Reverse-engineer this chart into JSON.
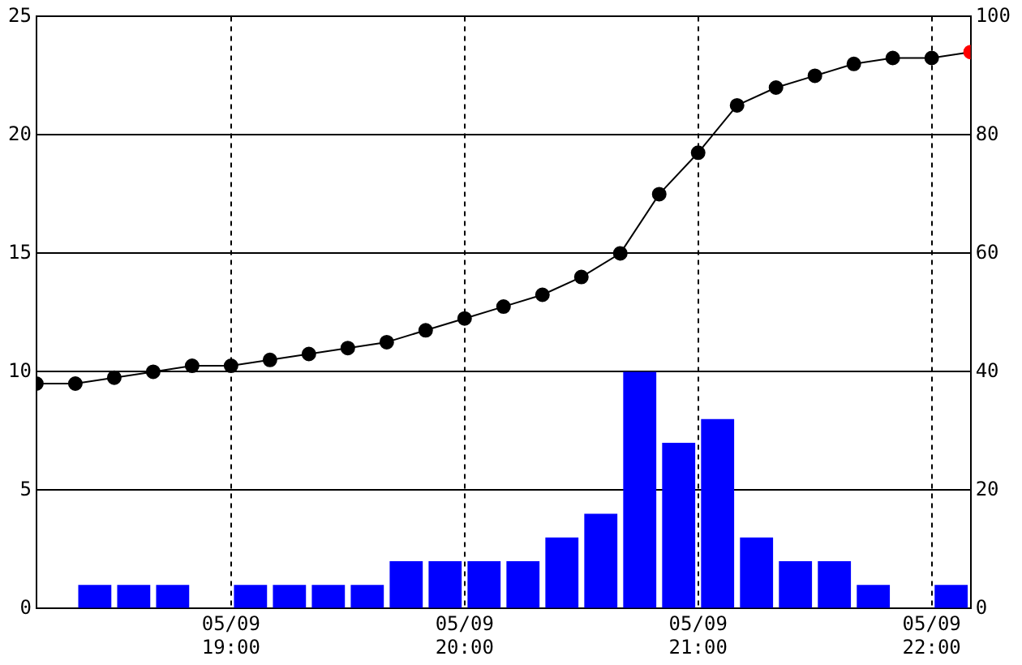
{
  "chart_data": {
    "type": "bar",
    "xlim": [
      "--05-09T18:10",
      "--05-09T22:10"
    ],
    "xticks": [
      {
        "value": "--05-09T19:00",
        "label": "05/09\n19:00"
      },
      {
        "value": "--05-09T20:00",
        "label": "05/09\n20:00"
      },
      {
        "value": "--05-09T21:00",
        "label": "05/09\n21:00"
      },
      {
        "value": "--05-09T22:00",
        "label": "05/09\n22:00"
      }
    ],
    "ylim": [
      0,
      25
    ],
    "yticks": [
      0,
      5,
      10,
      15,
      20,
      25
    ],
    "y2lim": [
      0,
      100
    ],
    "y2ticks": [
      0,
      20,
      40,
      60,
      80,
      100
    ],
    "grid": true,
    "legend": false,
    "series": [
      {
        "color": "#0000ff",
        "x": [
          "--05-09T18:15",
          "--05-09T18:25",
          "--05-09T18:35",
          "--05-09T18:45",
          "--05-09T18:55",
          "--05-09T19:05",
          "--05-09T19:15",
          "--05-09T19:25",
          "--05-09T19:35",
          "--05-09T19:45",
          "--05-09T19:55",
          "--05-09T20:05",
          "--05-09T20:15",
          "--05-09T20:25",
          "--05-09T20:35",
          "--05-09T20:45",
          "--05-09T20:55",
          "--05-09T21:05",
          "--05-09T21:15",
          "--05-09T21:25",
          "--05-09T21:35",
          "--05-09T21:45",
          "--05-09T21:55",
          "--05-09T22:05"
        ],
        "values": [
          0,
          1,
          1,
          1,
          0,
          1,
          1,
          1,
          1,
          2,
          2,
          2,
          2,
          3,
          4,
          10,
          7,
          8,
          3,
          2,
          2,
          1,
          0,
          1
        ]
      },
      {
        "type": "line",
        "axis": "y2",
        "color": "#000000",
        "marker": "circle",
        "line_style": "solid",
        "colors": [
          "#000000",
          "#000000",
          "#000000",
          "#000000",
          "#000000",
          "#000000",
          "#000000",
          "#000000",
          "#000000",
          "#000000",
          "#000000",
          "#000000",
          "#000000",
          "#000000",
          "#000000",
          "#000000",
          "#000000",
          "#000000",
          "#000000",
          "#000000",
          "#000000",
          "#000000",
          "#000000",
          "#000000",
          "#ff0000"
        ],
        "x": [
          "--05-09T18:10",
          "--05-09T18:20",
          "--05-09T18:30",
          "--05-09T18:40",
          "--05-09T18:50",
          "--05-09T19:00",
          "--05-09T19:10",
          "--05-09T19:20",
          "--05-09T19:30",
          "--05-09T19:40",
          "--05-09T19:50",
          "--05-09T20:00",
          "--05-09T20:10",
          "--05-09T20:20",
          "--05-09T20:30",
          "--05-09T20:40",
          "--05-09T20:50",
          "--05-09T21:00",
          "--05-09T21:10",
          "--05-09T21:20",
          "--05-09T21:30",
          "--05-09T21:40",
          "--05-09T21:50",
          "--05-09T22:00",
          "--05-09T22:10"
        ],
        "values": [
          38,
          38,
          39,
          40,
          41,
          41,
          42,
          43,
          44,
          45,
          47,
          49,
          51,
          53,
          56,
          60,
          70,
          77,
          85,
          88,
          90,
          92,
          93,
          93,
          94
        ]
      }
    ]
  }
}
